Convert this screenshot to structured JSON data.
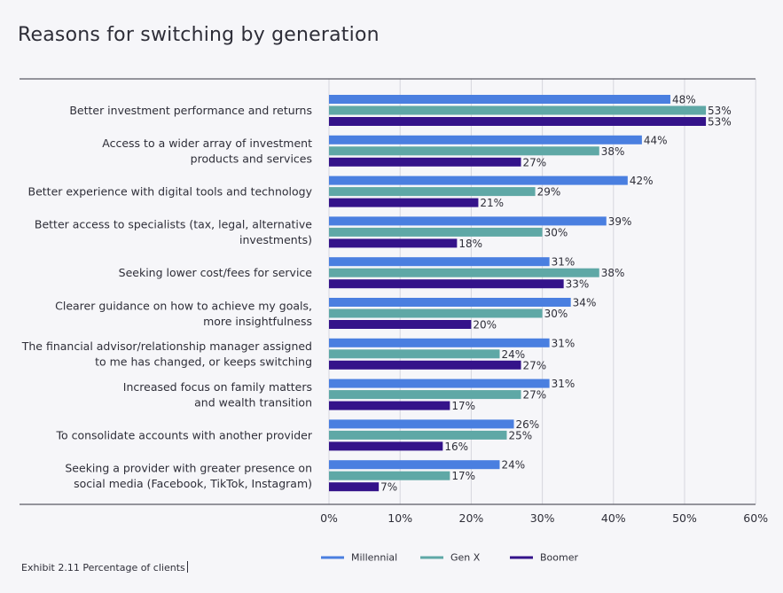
{
  "page": {
    "footnote": "Exhibit 2.11 Percentage of clients"
  },
  "chart_data": {
    "type": "bar",
    "orientation": "horizontal",
    "title": "Reasons for switching by generation",
    "xlim": [
      0,
      60
    ],
    "xticks": [
      0,
      10,
      20,
      30,
      40,
      50,
      60
    ],
    "xtick_format": "%",
    "grid": true,
    "legend_position": "bottom",
    "categories": [
      [
        "Better investment performance and returns"
      ],
      [
        "Access to a wider array of investment",
        "products and services"
      ],
      [
        "Better experience with digital tools and technology"
      ],
      [
        "Better access to specialists (tax, legal, alternative",
        "investments)"
      ],
      [
        "Seeking lower cost/fees for service"
      ],
      [
        "Clearer guidance on how to achieve my goals,",
        "more insightfulness"
      ],
      [
        "The financial advisor/relationship manager assigned",
        "to me has changed, or keeps switching"
      ],
      [
        "Increased focus on family matters",
        "and wealth transition"
      ],
      [
        "To consolidate accounts with another provider"
      ],
      [
        "Seeking a provider with greater presence on",
        "social media (Facebook, TikTok, Instagram)"
      ]
    ],
    "series": [
      {
        "name": "Millennial",
        "color": "#4a7fe0",
        "values": [
          48,
          44,
          42,
          39,
          31,
          34,
          31,
          31,
          26,
          24
        ]
      },
      {
        "name": "Gen X",
        "color": "#5fa8a6",
        "values": [
          53,
          38,
          29,
          30,
          38,
          30,
          24,
          27,
          25,
          17
        ]
      },
      {
        "name": "Boomer",
        "color": "#34138a",
        "values": [
          53,
          27,
          21,
          18,
          33,
          20,
          27,
          17,
          16,
          7
        ]
      }
    ]
  }
}
